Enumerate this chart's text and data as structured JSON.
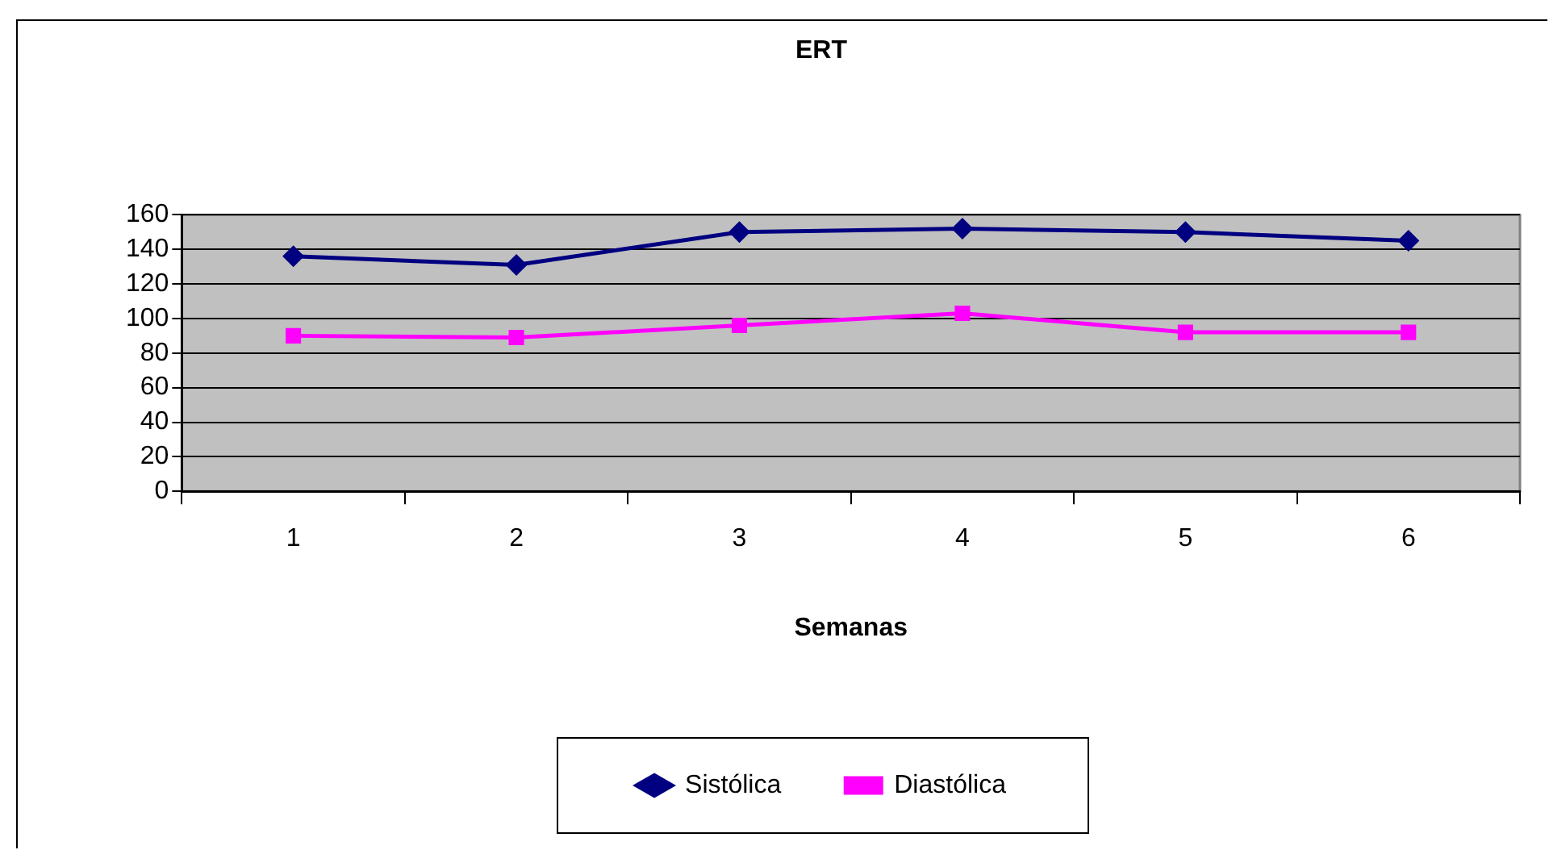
{
  "chart_data": {
    "type": "line",
    "title": "ERT",
    "xlabel": "Semanas",
    "categories": [
      "1",
      "2",
      "3",
      "4",
      "5",
      "6"
    ],
    "series": [
      {
        "name": "Sistólica",
        "color": "#000080",
        "marker": "diamond",
        "values": [
          136,
          131,
          150,
          152,
          150,
          145
        ]
      },
      {
        "name": "Diastólica",
        "color": "#ff00ff",
        "marker": "square",
        "values": [
          90,
          89,
          96,
          103,
          92,
          92
        ]
      }
    ],
    "ylim": [
      0,
      160
    ],
    "yticks": [
      0,
      20,
      40,
      60,
      80,
      100,
      120,
      140,
      160
    ],
    "grid": "y",
    "legend": "bottom",
    "line_style": "solid"
  }
}
